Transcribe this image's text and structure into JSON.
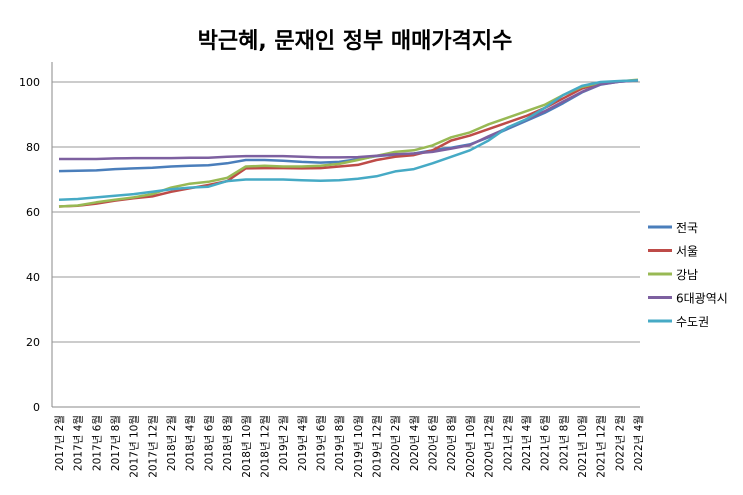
{
  "chart_data": {
    "type": "line",
    "title": "박근혜, 문재인 정부 매매가격지수",
    "xlabel": "",
    "ylabel": "",
    "ylim": [
      0,
      100
    ],
    "yticks": [
      "0",
      "20",
      "40",
      "60",
      "80",
      "100"
    ],
    "grid": true,
    "legend_position": "right",
    "categories": [
      "2017년 2월",
      "2017년 4월",
      "2017년 6월",
      "2017년 8월",
      "2017년 10월",
      "2017년 12월",
      "2018년 2월",
      "2018년 4월",
      "2018년 6월",
      "2018년 8월",
      "2018년 10월",
      "2018년 12월",
      "2019년 2월",
      "2019년 4월",
      "2019년 6월",
      "2019년 8월",
      "2019년 10월",
      "2019년 12월",
      "2020년 2월",
      "2020년 4월",
      "2020년 6월",
      "2020년 8월",
      "2020년 10월",
      "2020년 12월",
      "2021년 2월",
      "2021년 4월",
      "2021년 6월",
      "2021년 8월",
      "2021년 10월",
      "2021년 12월",
      "2022년 2월",
      "2022년 4월"
    ],
    "series": [
      {
        "name": "전국",
        "color": "#4a7ebb",
        "values": [
          72.6,
          72.7,
          72.8,
          73.2,
          73.4,
          73.6,
          74.0,
          74.2,
          74.4,
          75.0,
          76.0,
          76.0,
          75.8,
          75.4,
          75.2,
          75.4,
          76.2,
          77.2,
          77.6,
          78.0,
          79.0,
          79.8,
          80.8,
          83.0,
          85.5,
          88.0,
          90.5,
          93.5,
          96.8,
          99.2,
          100.1,
          100.5
        ]
      },
      {
        "name": "서울",
        "color": "#be4b48",
        "values": [
          61.7,
          61.9,
          62.6,
          63.5,
          64.2,
          64.8,
          66.2,
          67.3,
          68.3,
          69.5,
          73.4,
          73.5,
          73.5,
          73.4,
          73.5,
          74.0,
          74.5,
          76.0,
          77.0,
          77.5,
          79.0,
          82.0,
          83.5,
          85.5,
          87.5,
          89.5,
          92.0,
          95.0,
          98.0,
          99.7,
          100.2,
          100.5
        ]
      },
      {
        "name": "강남",
        "color": "#98b954",
        "values": [
          61.7,
          62.0,
          63.0,
          63.8,
          64.5,
          65.5,
          67.5,
          68.7,
          69.3,
          70.5,
          74.0,
          74.2,
          74.0,
          74.0,
          74.2,
          74.8,
          76.0,
          77.3,
          78.5,
          79.0,
          80.5,
          83.0,
          84.5,
          87.0,
          89.0,
          91.0,
          93.0,
          96.0,
          98.5,
          99.8,
          100.2,
          100.7
        ]
      },
      {
        "name": "6대광역시",
        "color": "#7d60a0",
        "values": [
          76.3,
          76.3,
          76.3,
          76.5,
          76.6,
          76.6,
          76.6,
          76.7,
          76.7,
          77.0,
          77.2,
          77.2,
          77.2,
          77.0,
          76.8,
          76.8,
          76.9,
          77.3,
          77.8,
          78.0,
          78.5,
          79.5,
          80.6,
          83.3,
          85.8,
          88.4,
          91.0,
          94.0,
          97.0,
          99.3,
          100.1,
          100.5
        ]
      },
      {
        "name": "수도권",
        "color": "#46aac5",
        "values": [
          63.8,
          64.0,
          64.5,
          65.0,
          65.5,
          66.2,
          67.0,
          67.5,
          67.8,
          69.5,
          70.0,
          70.0,
          70.0,
          69.8,
          69.6,
          69.8,
          70.2,
          71.0,
          72.5,
          73.2,
          75.0,
          77.0,
          79.0,
          82.0,
          86.0,
          88.5,
          92.0,
          96.0,
          98.8,
          100.0,
          100.3,
          100.5
        ]
      }
    ]
  }
}
